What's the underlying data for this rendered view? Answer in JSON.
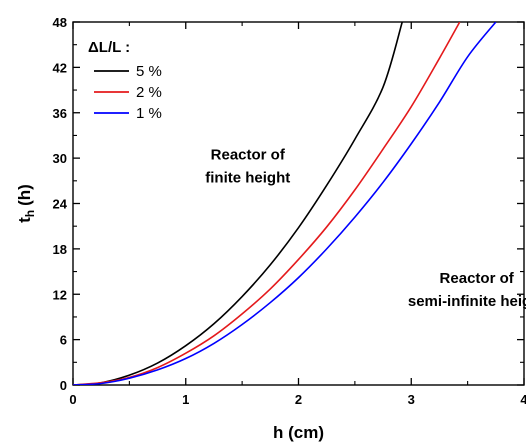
{
  "chart_data": {
    "type": "line",
    "xlabel": "h (cm)",
    "ylabel_main": "t",
    "ylabel_sub": "h",
    "ylabel_unit": "(h)",
    "xlim": [
      0,
      4
    ],
    "ylim": [
      0,
      48
    ],
    "xticks": [
      0,
      1,
      2,
      3,
      4
    ],
    "yticks": [
      0,
      6,
      12,
      18,
      24,
      30,
      36,
      42,
      48
    ],
    "grid": false,
    "legend_title": "ΔL/L :",
    "legend_position": "top-left",
    "series": [
      {
        "name": "5 %",
        "color": "#000000",
        "x": [
          0,
          0.25,
          0.5,
          0.75,
          1.0,
          1.25,
          1.5,
          1.75,
          2.0,
          2.25,
          2.5,
          2.75,
          2.92
        ],
        "y": [
          0,
          0.3,
          1.3,
          2.9,
          5.2,
          8.1,
          11.7,
          15.9,
          20.8,
          26.4,
          32.5,
          39.4,
          48
        ]
      },
      {
        "name": "2 %",
        "color": "#e41a1c",
        "x": [
          0,
          0.25,
          0.5,
          0.75,
          1.0,
          1.25,
          1.5,
          1.75,
          2.0,
          2.25,
          2.5,
          2.75,
          3.0,
          3.25,
          3.43
        ],
        "y": [
          0,
          0.3,
          1.0,
          2.3,
          4.2,
          6.5,
          9.4,
          12.7,
          16.6,
          20.9,
          25.8,
          31.2,
          36.8,
          43.2,
          48
        ]
      },
      {
        "name": "1 %",
        "color": "#0000ff",
        "x": [
          0,
          0.25,
          0.5,
          0.75,
          1.0,
          1.25,
          1.5,
          1.75,
          2.0,
          2.25,
          2.5,
          2.75,
          3.0,
          3.25,
          3.5,
          3.75
        ],
        "y": [
          0,
          0.2,
          0.9,
          2.0,
          3.5,
          5.5,
          8.0,
          10.9,
          14.2,
          18.0,
          22.2,
          26.8,
          31.9,
          37.4,
          43.4,
          48
        ]
      }
    ],
    "annotations": [
      {
        "lines": [
          "Reactor of",
          "finite height"
        ],
        "x": 1.55,
        "y": 29.8
      },
      {
        "lines": [
          "Reactor of",
          "semi-infinite height"
        ],
        "x": 3.58,
        "y": 13.5
      }
    ]
  }
}
